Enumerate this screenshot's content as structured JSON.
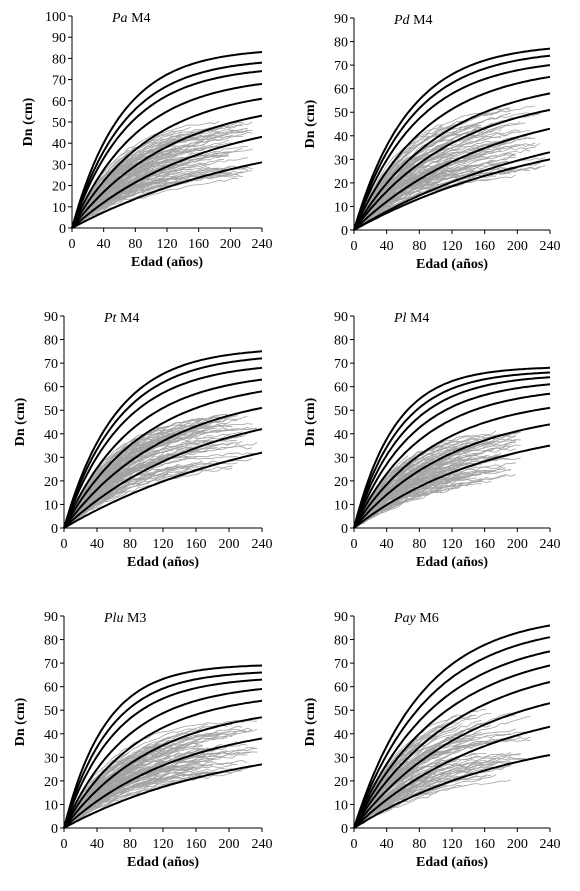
{
  "figure": {
    "xlabel": "Edad (años)",
    "ylabel": "Dn (cm)"
  },
  "chart_data": [
    {
      "type": "line",
      "species": "Pa",
      "model": "M4",
      "xlabel": "Edad (años)",
      "ylabel": "Dn (cm)",
      "xlim": [
        0,
        240
      ],
      "ylim": [
        0,
        100
      ],
      "xticks": [
        0,
        40,
        80,
        120,
        160,
        200,
        240
      ],
      "yticks": [
        0,
        10,
        20,
        30,
        40,
        50,
        60,
        70,
        80,
        90,
        100
      ],
      "curve_asymptotes": [
        83,
        78,
        74,
        68,
        61,
        53,
        43,
        31
      ],
      "curve_shapes": [
        0.016,
        0.015,
        0.014,
        0.012,
        0.01,
        0.008,
        0.006,
        0.004
      ],
      "observed_cloud": {
        "x_max": 235,
        "y_low_at_240": 24,
        "y_high_at_240": 52
      },
      "series": [
        {
          "name": "guide curves (black)"
        },
        {
          "name": "observed data (grey)"
        }
      ]
    },
    {
      "type": "line",
      "species": "Pd",
      "model": "M4",
      "xlabel": "Edad (años)",
      "ylabel": "Dn (cm)",
      "xlim": [
        0,
        240
      ],
      "ylim": [
        0,
        90
      ],
      "xticks": [
        0,
        40,
        80,
        120,
        160,
        200,
        240
      ],
      "yticks": [
        0,
        10,
        20,
        30,
        40,
        50,
        60,
        70,
        80,
        90
      ],
      "curve_asymptotes": [
        77,
        74,
        70,
        65,
        58,
        51,
        43,
        33,
        30
      ],
      "curve_shapes": [
        0.015,
        0.014,
        0.013,
        0.011,
        0.009,
        0.008,
        0.006,
        0.004,
        0.004
      ],
      "observed_cloud": {
        "x_max": 240,
        "y_low_at_240": 24,
        "y_high_at_240": 54
      },
      "series": [
        {
          "name": "guide curves (black)"
        },
        {
          "name": "observed data (grey)"
        }
      ]
    },
    {
      "type": "line",
      "species": "Pt",
      "model": "M4",
      "xlabel": "Edad (años)",
      "ylabel": "Dn (cm)",
      "xlim": [
        0,
        240
      ],
      "ylim": [
        0,
        90
      ],
      "xticks": [
        0,
        40,
        80,
        120,
        160,
        200,
        240
      ],
      "yticks": [
        0,
        10,
        20,
        30,
        40,
        50,
        60,
        70,
        80,
        90
      ],
      "curve_asymptotes": [
        75,
        72,
        68,
        63,
        58,
        51,
        42,
        32
      ],
      "curve_shapes": [
        0.016,
        0.015,
        0.014,
        0.012,
        0.01,
        0.008,
        0.006,
        0.004
      ],
      "observed_cloud": {
        "x_max": 240,
        "y_low_at_240": 27,
        "y_high_at_240": 50
      },
      "series": [
        {
          "name": "guide curves (black)"
        },
        {
          "name": "observed data (grey)"
        }
      ]
    },
    {
      "type": "line",
      "species": "Pl",
      "model": "M4",
      "xlabel": "Edad (años)",
      "ylabel": "Dn (cm)",
      "xlim": [
        0,
        240
      ],
      "ylim": [
        0,
        90
      ],
      "xticks": [
        0,
        40,
        80,
        120,
        160,
        200,
        240
      ],
      "yticks": [
        0,
        10,
        20,
        30,
        40,
        50,
        60,
        70,
        80,
        90
      ],
      "curve_asymptotes": [
        68,
        66,
        64,
        61,
        57,
        51,
        44,
        35
      ],
      "curve_shapes": [
        0.02,
        0.018,
        0.016,
        0.014,
        0.012,
        0.01,
        0.008,
        0.006
      ],
      "observed_cloud": {
        "x_max": 210,
        "y_low_at_240": 22,
        "y_high_at_240": 44
      },
      "series": [
        {
          "name": "guide curves (black)"
        },
        {
          "name": "observed data (grey)"
        }
      ]
    },
    {
      "type": "line",
      "species": "Plu",
      "model": "M3",
      "xlabel": "Edad (años)",
      "ylabel": "Dn (cm)",
      "xlim": [
        0,
        240
      ],
      "ylim": [
        0,
        90
      ],
      "xticks": [
        0,
        40,
        80,
        120,
        160,
        200,
        240
      ],
      "yticks": [
        0,
        10,
        20,
        30,
        40,
        50,
        60,
        70,
        80,
        90
      ],
      "curve_asymptotes": [
        69,
        66,
        63,
        59,
        54,
        47,
        38,
        27
      ],
      "curve_shapes": [
        0.02,
        0.018,
        0.016,
        0.013,
        0.011,
        0.009,
        0.007,
        0.005
      ],
      "observed_cloud": {
        "x_max": 240,
        "y_low_at_240": 24,
        "y_high_at_240": 46
      },
      "series": [
        {
          "name": "guide curves (black)"
        },
        {
          "name": "observed data (grey)"
        }
      ]
    },
    {
      "type": "line",
      "species": "Pay",
      "model": "M6",
      "xlabel": "Edad (años)",
      "ylabel": "Dn (cm)",
      "xlim": [
        0,
        240
      ],
      "ylim": [
        0,
        90
      ],
      "xticks": [
        0,
        40,
        80,
        120,
        160,
        200,
        240
      ],
      "yticks": [
        0,
        10,
        20,
        30,
        40,
        50,
        60,
        70,
        80,
        90
      ],
      "curve_asymptotes": [
        86,
        81,
        75,
        69,
        62,
        53,
        43,
        31
      ],
      "curve_shapes": [
        0.012,
        0.011,
        0.01,
        0.009,
        0.008,
        0.007,
        0.006,
        0.005
      ],
      "observed_cloud": {
        "x_max": 220,
        "y_low_at_240": 20,
        "y_high_at_240": 55
      },
      "series": [
        {
          "name": "guide curves (black)"
        },
        {
          "name": "observed data (grey)"
        }
      ]
    }
  ]
}
